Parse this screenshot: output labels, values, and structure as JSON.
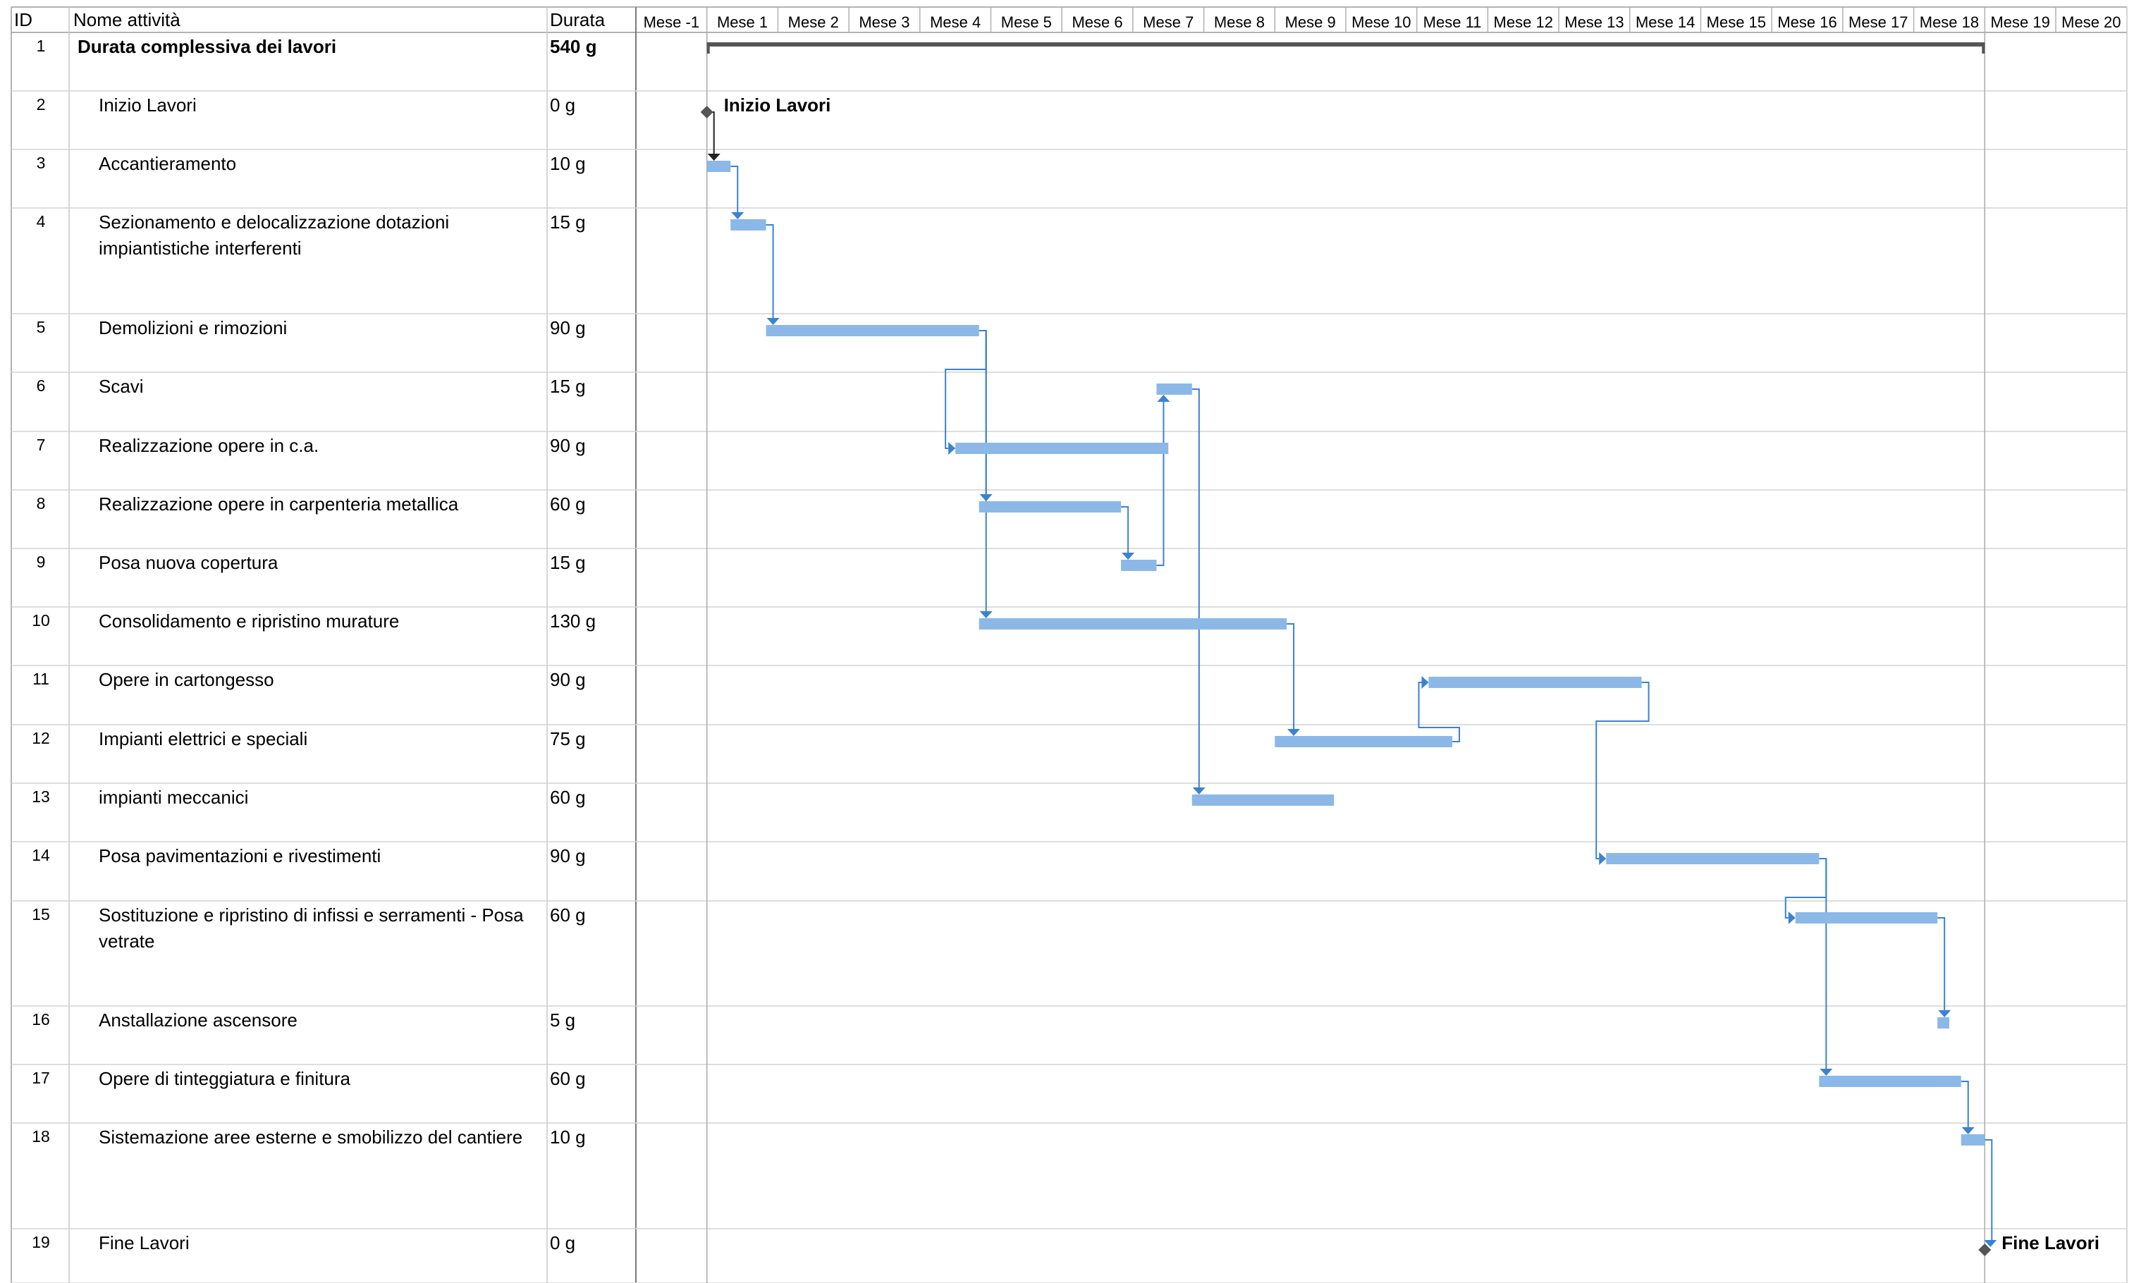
{
  "table": {
    "header": {
      "id": "ID",
      "name": "Nome attività",
      "duration": "Durata"
    },
    "rows": [
      {
        "id": "1",
        "name": [
          "Durata complessiva dei lavori"
        ],
        "duration": "540 g",
        "summary": true
      },
      {
        "id": "2",
        "name": [
          "Inizio Lavori"
        ],
        "duration": "0 g"
      },
      {
        "id": "3",
        "name": [
          "Accantieramento"
        ],
        "duration": "10 g"
      },
      {
        "id": "4",
        "name": [
          "Sezionamento e delocalizzazione dotazioni",
          "impiantistiche interferenti"
        ],
        "duration": "15 g"
      },
      {
        "id": "5",
        "name": [
          "Demolizioni e rimozioni"
        ],
        "duration": "90 g"
      },
      {
        "id": "6",
        "name": [
          "Scavi"
        ],
        "duration": "15 g"
      },
      {
        "id": "7",
        "name": [
          "Realizzazione opere in c.a."
        ],
        "duration": "90 g"
      },
      {
        "id": "8",
        "name": [
          "Realizzazione opere in carpenteria metallica"
        ],
        "duration": "60 g"
      },
      {
        "id": "9",
        "name": [
          "Posa nuova copertura"
        ],
        "duration": "15 g"
      },
      {
        "id": "10",
        "name": [
          "Consolidamento e ripristino murature"
        ],
        "duration": "130 g"
      },
      {
        "id": "11",
        "name": [
          "Opere in cartongesso"
        ],
        "duration": "90 g"
      },
      {
        "id": "12",
        "name": [
          "Impianti elettrici e speciali"
        ],
        "duration": "75 g"
      },
      {
        "id": "13",
        "name": [
          "impianti meccanici"
        ],
        "duration": "60 g"
      },
      {
        "id": "14",
        "name": [
          "Posa pavimentazioni e rivestimenti"
        ],
        "duration": "90 g"
      },
      {
        "id": "15",
        "name": [
          "Sostituzione e ripristino di infissi e serramenti - Posa",
          "vetrate"
        ],
        "duration": "60 g"
      },
      {
        "id": "16",
        "name": [
          "Anstallazione ascensore"
        ],
        "duration": "5 g"
      },
      {
        "id": "17",
        "name": [
          "Opere di tinteggiatura e finitura"
        ],
        "duration": "60 g"
      },
      {
        "id": "18",
        "name": [
          "Sistemazione aree esterne e smobilizzo del cantiere"
        ],
        "duration": "10 g"
      },
      {
        "id": "19",
        "name": [
          "Fine Lavori"
        ],
        "duration": "0 g"
      }
    ]
  },
  "chart_data": {
    "type": "gantt",
    "time_unit": "giorni",
    "timescale": [
      "Mese -1",
      "Mese 1",
      "Mese 2",
      "Mese 3",
      "Mese 4",
      "Mese 5",
      "Mese 6",
      "Mese 7",
      "Mese 8",
      "Mese 9",
      "Mese 10",
      "Mese 11",
      "Mese 12",
      "Mese 13",
      "Mese 14",
      "Mese 15",
      "Mese 16",
      "Mese 17",
      "Mese 18",
      "Mese 19",
      "Mese 20"
    ],
    "timescale_start_day": -30,
    "days_per_month": 30,
    "tasks": [
      {
        "id": 1,
        "start": 0,
        "end": 540,
        "kind": "summary"
      },
      {
        "id": 2,
        "start": 0,
        "end": 0,
        "kind": "milestone",
        "label": "Inizio Lavori"
      },
      {
        "id": 3,
        "start": 0,
        "end": 10,
        "kind": "task"
      },
      {
        "id": 4,
        "start": 10,
        "end": 25,
        "kind": "task"
      },
      {
        "id": 5,
        "start": 25,
        "end": 115,
        "kind": "task"
      },
      {
        "id": 6,
        "start": 190,
        "end": 205,
        "kind": "task"
      },
      {
        "id": 7,
        "start": 105,
        "end": 195,
        "kind": "task"
      },
      {
        "id": 8,
        "start": 115,
        "end": 175,
        "kind": "task"
      },
      {
        "id": 9,
        "start": 175,
        "end": 190,
        "kind": "task"
      },
      {
        "id": 10,
        "start": 115,
        "end": 245,
        "kind": "task"
      },
      {
        "id": 11,
        "start": 305,
        "end": 395,
        "kind": "task"
      },
      {
        "id": 12,
        "start": 240,
        "end": 315,
        "kind": "task"
      },
      {
        "id": 13,
        "start": 205,
        "end": 265,
        "kind": "task"
      },
      {
        "id": 14,
        "start": 380,
        "end": 470,
        "kind": "task"
      },
      {
        "id": 15,
        "start": 460,
        "end": 520,
        "kind": "task"
      },
      {
        "id": 16,
        "start": 520,
        "end": 525,
        "kind": "task"
      },
      {
        "id": 17,
        "start": 470,
        "end": 530,
        "kind": "task"
      },
      {
        "id": 18,
        "start": 530,
        "end": 540,
        "kind": "task"
      },
      {
        "id": 19,
        "start": 540,
        "end": 540,
        "kind": "milestone",
        "label": "Fine Lavori"
      }
    ],
    "links": [
      {
        "from": 2,
        "to": 3,
        "type": "FS"
      },
      {
        "from": 3,
        "to": 4,
        "type": "FS"
      },
      {
        "from": 4,
        "to": 5,
        "type": "FS"
      },
      {
        "from": 5,
        "to": 7,
        "type": "FS-lag"
      },
      {
        "from": 5,
        "to": 8,
        "type": "FS"
      },
      {
        "from": 5,
        "to": 10,
        "type": "FS"
      },
      {
        "from": 8,
        "to": 9,
        "type": "FS"
      },
      {
        "from": 9,
        "to": 6,
        "type": "FS"
      },
      {
        "from": 6,
        "to": 13,
        "type": "FS"
      },
      {
        "from": 10,
        "to": 12,
        "type": "FS"
      },
      {
        "from": 12,
        "to": 11,
        "type": "FS-lag"
      },
      {
        "from": 11,
        "to": 14,
        "type": "FS-lag"
      },
      {
        "from": 14,
        "to": 15,
        "type": "FS-lag"
      },
      {
        "from": 14,
        "to": 17,
        "type": "FS"
      },
      {
        "from": 15,
        "to": 16,
        "type": "FS"
      },
      {
        "from": 17,
        "to": 18,
        "type": "FS"
      },
      {
        "from": 18,
        "to": 19,
        "type": "FS"
      }
    ],
    "colors": {
      "bar": "#8cb8e8",
      "link": "#3b82d0",
      "summary": "#555555",
      "milestone": "#555555",
      "grid": "#c8c8c8"
    }
  }
}
